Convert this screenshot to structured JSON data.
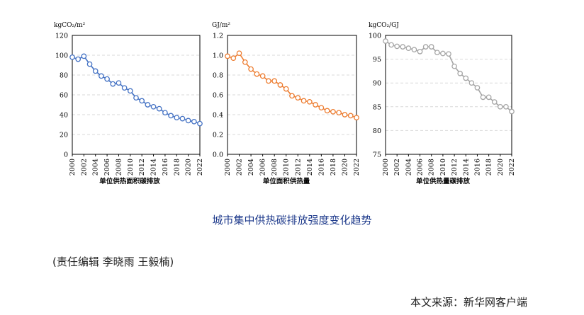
{
  "chart_data": [
    {
      "type": "line",
      "ylabel": "kgCO₂/m²",
      "xlabel": "单位供热面积碳排放",
      "ylim": [
        0,
        120
      ],
      "y_ticks": [
        "0",
        "20",
        "40",
        "60",
        "80",
        "100",
        "120"
      ],
      "x_ticks": [
        "2000",
        "2002",
        "2004",
        "2006",
        "2008",
        "2010",
        "2012",
        "2014",
        "2016",
        "2018",
        "2020",
        "2022"
      ],
      "color": "#4472c4",
      "grid": true,
      "series": [
        {
          "x": [
            2000,
            2001,
            2002,
            2003,
            2004,
            2005,
            2006,
            2007,
            2008,
            2009,
            2010,
            2011,
            2012,
            2013,
            2014,
            2015,
            2016,
            2017,
            2018,
            2019,
            2020,
            2021,
            2022
          ],
          "values": [
            98,
            96,
            99,
            91,
            84,
            79,
            76,
            71,
            72,
            67,
            64,
            57,
            54,
            50,
            48,
            46,
            42,
            39,
            37,
            36,
            34,
            33,
            31
          ]
        }
      ]
    },
    {
      "type": "line",
      "ylabel": "GJ/m²",
      "xlabel": "单位面积供热量",
      "ylim": [
        0,
        1.2
      ],
      "y_ticks": [
        "0.0",
        "0.2",
        "0.4",
        "0.6",
        "0.8",
        "1.0",
        "1.2"
      ],
      "x_ticks": [
        "2000",
        "2002",
        "2004",
        "2006",
        "2008",
        "2010",
        "2012",
        "2014",
        "2016",
        "2018",
        "2020",
        "2022"
      ],
      "color": "#ed7d31",
      "grid": true,
      "series": [
        {
          "x": [
            2000,
            2001,
            2002,
            2003,
            2004,
            2005,
            2006,
            2007,
            2008,
            2009,
            2010,
            2011,
            2012,
            2013,
            2014,
            2015,
            2016,
            2017,
            2018,
            2019,
            2020,
            2021,
            2022
          ],
          "values": [
            0.99,
            0.97,
            1.02,
            0.93,
            0.86,
            0.81,
            0.79,
            0.74,
            0.74,
            0.7,
            0.66,
            0.59,
            0.57,
            0.54,
            0.53,
            0.5,
            0.47,
            0.44,
            0.43,
            0.42,
            0.4,
            0.39,
            0.37
          ]
        }
      ]
    },
    {
      "type": "line",
      "ylabel": "kgCO₂/GJ",
      "xlabel": "单位供热量碳排放",
      "ylim": [
        75,
        100
      ],
      "y_ticks": [
        "75",
        "80",
        "85",
        "90",
        "95",
        "100"
      ],
      "x_ticks": [
        "2000",
        "2002",
        "2004",
        "2006",
        "2008",
        "2010",
        "2012",
        "2014",
        "2016",
        "2018",
        "2020",
        "2022"
      ],
      "color": "#a5a5a5",
      "grid": true,
      "series": [
        {
          "x": [
            2000,
            2001,
            2002,
            2003,
            2004,
            2005,
            2006,
            2007,
            2008,
            2009,
            2010,
            2011,
            2012,
            2013,
            2014,
            2015,
            2016,
            2017,
            2018,
            2019,
            2020,
            2021,
            2022
          ],
          "values": [
            98.8,
            98.0,
            97.7,
            97.6,
            97.3,
            97.0,
            96.6,
            97.6,
            97.6,
            96.4,
            96.2,
            96.1,
            93.5,
            92.0,
            91.0,
            90.0,
            89.0,
            87.0,
            87.0,
            86.0,
            85.0,
            85.0,
            84.0
          ]
        }
      ]
    }
  ],
  "caption": "城市集中供热碳排放强度变化趋势",
  "editors": "(责任编辑 李晓雨 王毅楠)",
  "source": "本文来源：新华网客户端"
}
